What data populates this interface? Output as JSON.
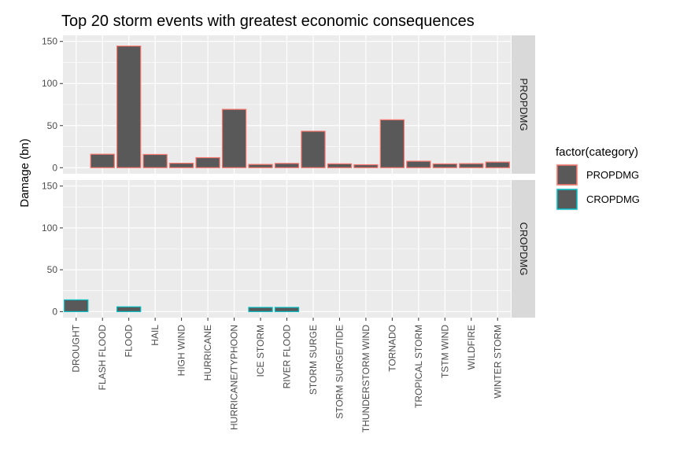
{
  "chart_data": {
    "type": "bar",
    "title": "Top 20 storm events with greatest economic consequences",
    "ylabel": "Damage (bn)",
    "xlabel": "",
    "ylim": [
      0,
      150
    ],
    "yticks": [
      0,
      50,
      100,
      150
    ],
    "categories": [
      "DROUGHT",
      "FLASH FLOOD",
      "FLOOD",
      "HAIL",
      "HIGH WIND",
      "HURRICANE",
      "HURRICANE/TYPHOON",
      "ICE STORM",
      "RIVER FLOOD",
      "STORM SURGE",
      "STORM SURGE/TIDE",
      "THUNDERSTORM WIND",
      "TORNADO",
      "TROPICAL STORM",
      "TSTM WIND",
      "WILDFIRE",
      "WINTER STORM"
    ],
    "facets": [
      {
        "name": "PROPDMG",
        "color": "#F8766D",
        "values": [
          null,
          16.0,
          144.5,
          15.7,
          5.3,
          11.9,
          69.3,
          3.9,
          5.1,
          43.3,
          4.6,
          3.5,
          56.9,
          7.7,
          4.5,
          4.8,
          6.7
        ]
      },
      {
        "name": "CROPDMG",
        "color": "#00BFC4",
        "values": [
          14.0,
          null,
          5.7,
          null,
          null,
          null,
          null,
          5.0,
          5.0,
          null,
          null,
          null,
          null,
          null,
          null,
          null,
          null
        ]
      }
    ],
    "bar_fill": "#595959",
    "panel_background": "#EBEBEB",
    "strip_background": "#D9D9D9",
    "grid": true,
    "legend": {
      "title": "factor(category)",
      "position": "right",
      "entries": [
        {
          "label": "PROPDMG",
          "color": "#F8766D"
        },
        {
          "label": "CROPDMG",
          "color": "#00BFC4"
        }
      ]
    }
  }
}
